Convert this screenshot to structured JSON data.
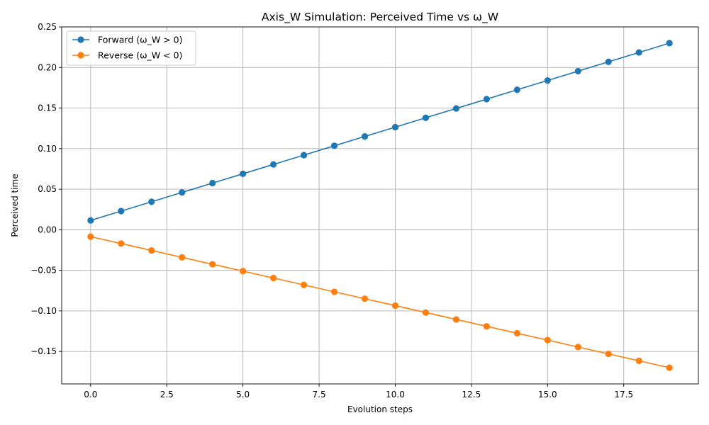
{
  "chart_data": {
    "type": "line",
    "title": "Axis_W Simulation: Perceived Time vs ω_W",
    "xlabel": "Evolution steps",
    "ylabel": "Perceived time",
    "xlim": [
      -0.95,
      19.95
    ],
    "ylim": [
      -0.19,
      0.25
    ],
    "xticks": [
      0.0,
      2.5,
      5.0,
      7.5,
      10.0,
      12.5,
      15.0,
      17.5
    ],
    "xtick_labels": [
      "0.0",
      "2.5",
      "5.0",
      "7.5",
      "10.0",
      "12.5",
      "15.0",
      "17.5"
    ],
    "yticks": [
      -0.15,
      -0.1,
      -0.05,
      0.0,
      0.05,
      0.1,
      0.15,
      0.2,
      0.25
    ],
    "ytick_labels": [
      "−0.15",
      "−0.10",
      "−0.05",
      "0.00",
      "0.05",
      "0.10",
      "0.15",
      "0.20",
      "0.25"
    ],
    "grid": true,
    "legend_position": "top-left",
    "x": [
      0,
      1,
      2,
      3,
      4,
      5,
      6,
      7,
      8,
      9,
      10,
      11,
      12,
      13,
      14,
      15,
      16,
      17,
      18,
      19
    ],
    "series": [
      {
        "name": "Forward (ω_W > 0)",
        "color": "#1f77b4",
        "values": [
          0.0115,
          0.023,
          0.0345,
          0.046,
          0.0575,
          0.069,
          0.0805,
          0.092,
          0.1035,
          0.115,
          0.1265,
          0.138,
          0.1495,
          0.161,
          0.1725,
          0.184,
          0.1955,
          0.207,
          0.2185,
          0.23
        ]
      },
      {
        "name": "Reverse (ω_W < 0)",
        "color": "#ff7f0e",
        "values": [
          -0.0085,
          -0.017,
          -0.0255,
          -0.034,
          -0.0425,
          -0.051,
          -0.0595,
          -0.068,
          -0.0765,
          -0.085,
          -0.0935,
          -0.102,
          -0.1105,
          -0.119,
          -0.1275,
          -0.136,
          -0.1445,
          -0.153,
          -0.1615,
          -0.17
        ]
      }
    ]
  }
}
